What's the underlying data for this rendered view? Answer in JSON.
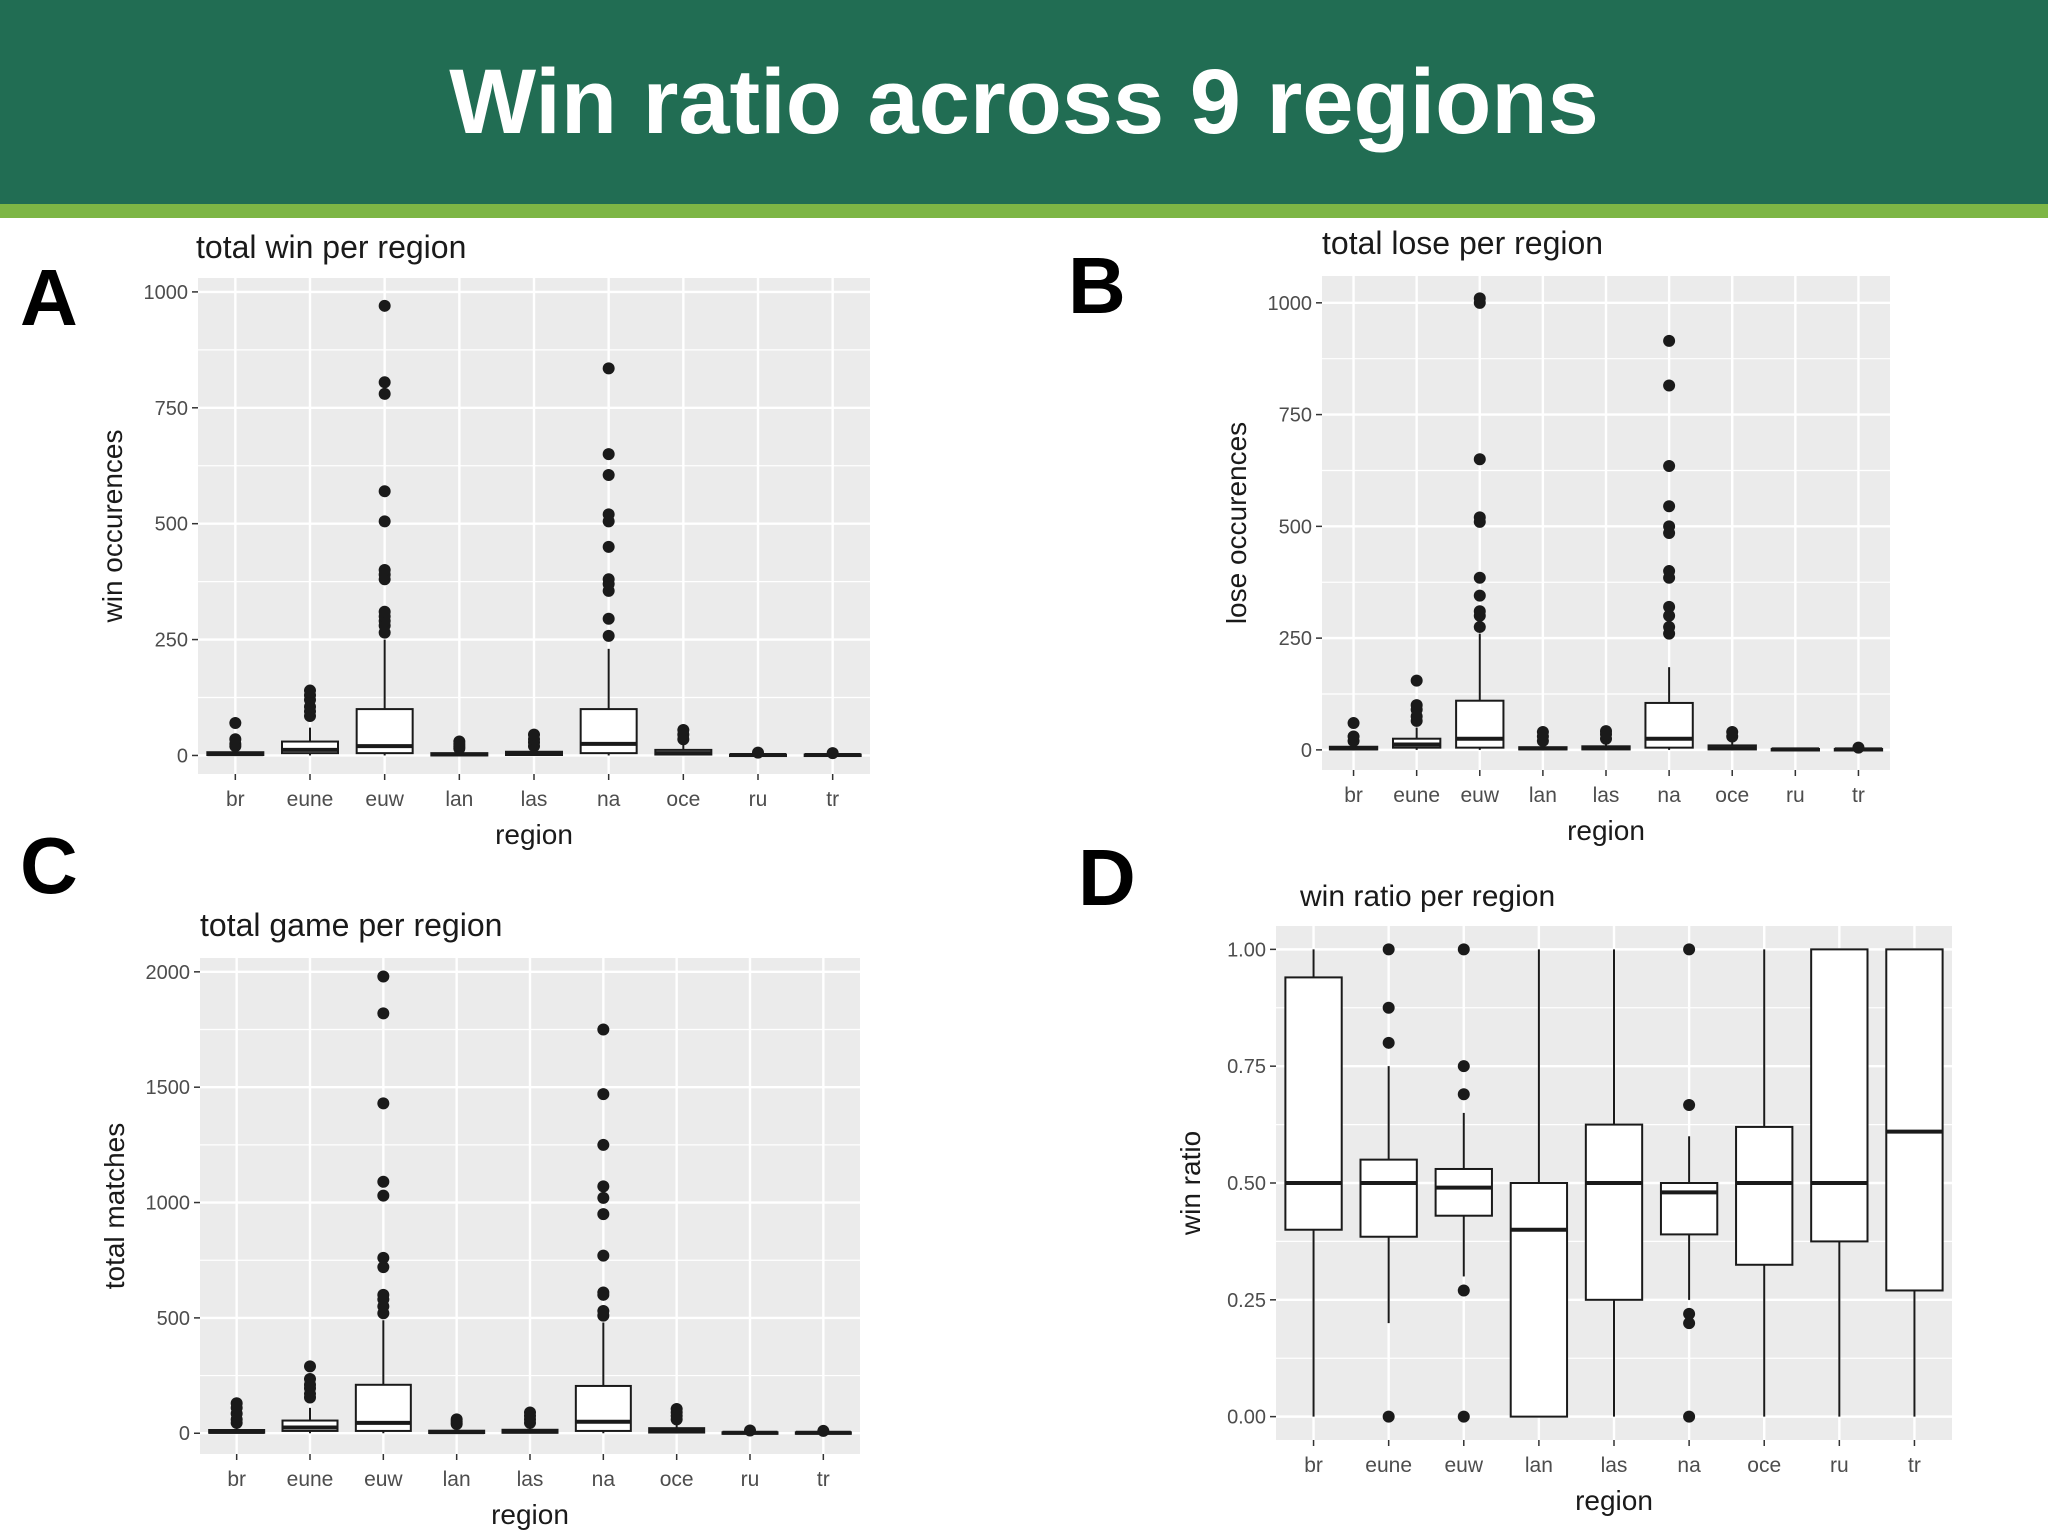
{
  "slide": {
    "title": "Win ratio across 9 regions",
    "colors": {
      "header": "#216d53",
      "stripe": "#7db645",
      "panel_bg": "#ebebeb",
      "grid": "#ffffff",
      "point": "#1a1a1a"
    }
  },
  "panels": [
    {
      "letter": "A"
    },
    {
      "letter": "B"
    },
    {
      "letter": "C"
    },
    {
      "letter": "D"
    }
  ],
  "chart_data": [
    {
      "type": "boxplot",
      "title": "total win per region",
      "xlabel": "region",
      "ylabel": "win occurences",
      "categories": [
        "br",
        "eune",
        "euw",
        "lan",
        "las",
        "na",
        "oce",
        "ru",
        "tr"
      ],
      "ylim": [
        -40,
        1030
      ],
      "yticks": [
        0,
        250,
        500,
        750,
        1000
      ],
      "ytick_labels": [
        "0",
        "250",
        "500",
        "750",
        "1000"
      ],
      "grid": true,
      "boxes": [
        {
          "category": "br",
          "min": 0,
          "q1": 1,
          "median": 3,
          "q3": 7,
          "max": 15,
          "outliers": [
            20,
            25,
            35,
            70
          ]
        },
        {
          "category": "eune",
          "min": 0,
          "q1": 5,
          "median": 12,
          "q3": 30,
          "max": 60,
          "outliers": [
            85,
            95,
            105,
            120,
            130,
            140
          ]
        },
        {
          "category": "euw",
          "min": 0,
          "q1": 5,
          "median": 20,
          "q3": 100,
          "max": 250,
          "outliers": [
            265,
            280,
            290,
            300,
            310,
            380,
            390,
            400,
            505,
            570,
            780,
            805,
            970
          ]
        },
        {
          "category": "lan",
          "min": 0,
          "q1": 0,
          "median": 2,
          "q3": 5,
          "max": 10,
          "outliers": [
            15,
            20,
            25,
            30
          ]
        },
        {
          "category": "las",
          "min": 0,
          "q1": 1,
          "median": 4,
          "q3": 8,
          "max": 15,
          "outliers": [
            20,
            28,
            35,
            45
          ]
        },
        {
          "category": "na",
          "min": 0,
          "q1": 5,
          "median": 25,
          "q3": 100,
          "max": 230,
          "outliers": [
            258,
            295,
            355,
            370,
            380,
            450,
            505,
            520,
            605,
            650,
            835
          ]
        },
        {
          "category": "oce",
          "min": 0,
          "q1": 2,
          "median": 5,
          "q3": 12,
          "max": 25,
          "outliers": [
            35,
            45,
            55
          ]
        },
        {
          "category": "ru",
          "min": 0,
          "q1": 0,
          "median": 1,
          "q3": 2,
          "max": 4,
          "outliers": [
            6
          ]
        },
        {
          "category": "tr",
          "min": 0,
          "q1": 0,
          "median": 1,
          "q3": 2,
          "max": 4,
          "outliers": [
            5
          ]
        }
      ]
    },
    {
      "type": "boxplot",
      "title": "total lose per region",
      "xlabel": "region",
      "ylabel": "lose occurences",
      "categories": [
        "br",
        "eune",
        "euw",
        "lan",
        "las",
        "na",
        "oce",
        "ru",
        "tr"
      ],
      "ylim": [
        -45,
        1060
      ],
      "yticks": [
        0,
        250,
        500,
        750,
        1000
      ],
      "ytick_labels": [
        "0",
        "250",
        "500",
        "750",
        "1000"
      ],
      "grid": true,
      "boxes": [
        {
          "category": "br",
          "min": 0,
          "q1": 1,
          "median": 3,
          "q3": 7,
          "max": 15,
          "outliers": [
            20,
            30,
            60
          ]
        },
        {
          "category": "eune",
          "min": 0,
          "q1": 5,
          "median": 12,
          "q3": 25,
          "max": 50,
          "outliers": [
            65,
            75,
            90,
            100,
            155
          ]
        },
        {
          "category": "euw",
          "min": 0,
          "q1": 5,
          "median": 25,
          "q3": 110,
          "max": 260,
          "outliers": [
            275,
            300,
            310,
            345,
            385,
            510,
            520,
            650,
            1000,
            1010
          ]
        },
        {
          "category": "lan",
          "min": 0,
          "q1": 1,
          "median": 3,
          "q3": 6,
          "max": 12,
          "outliers": [
            20,
            30,
            40
          ]
        },
        {
          "category": "las",
          "min": 0,
          "q1": 1,
          "median": 4,
          "q3": 8,
          "max": 15,
          "outliers": [
            25,
            35,
            42
          ]
        },
        {
          "category": "na",
          "min": 0,
          "q1": 5,
          "median": 25,
          "q3": 105,
          "max": 185,
          "outliers": [
            260,
            275,
            300,
            320,
            385,
            400,
            485,
            500,
            545,
            635,
            815,
            915
          ]
        },
        {
          "category": "oce",
          "min": 0,
          "q1": 1,
          "median": 4,
          "q3": 10,
          "max": 20,
          "outliers": [
            30,
            40
          ]
        },
        {
          "category": "ru",
          "min": 0,
          "q1": 0,
          "median": 1,
          "q3": 2,
          "max": 3,
          "outliers": []
        },
        {
          "category": "tr",
          "min": 0,
          "q1": 0,
          "median": 1,
          "q3": 2,
          "max": 3,
          "outliers": [
            5
          ]
        }
      ]
    },
    {
      "type": "boxplot",
      "title": "total game per region",
      "xlabel": "region",
      "ylabel": "total matches",
      "categories": [
        "br",
        "eune",
        "euw",
        "lan",
        "las",
        "na",
        "oce",
        "ru",
        "tr"
      ],
      "ylim": [
        -90,
        2060
      ],
      "yticks": [
        0,
        500,
        1000,
        1500,
        2000
      ],
      "ytick_labels": [
        "0",
        "500",
        "1000",
        "1500",
        "2000"
      ],
      "grid": true,
      "boxes": [
        {
          "category": "br",
          "min": 0,
          "q1": 2,
          "median": 6,
          "q3": 14,
          "max": 30,
          "outliers": [
            45,
            60,
            85,
            110,
            130
          ]
        },
        {
          "category": "eune",
          "min": 0,
          "q1": 10,
          "median": 25,
          "q3": 55,
          "max": 110,
          "outliers": [
            155,
            170,
            195,
            210,
            235,
            290
          ]
        },
        {
          "category": "euw",
          "min": 0,
          "q1": 10,
          "median": 45,
          "q3": 210,
          "max": 490,
          "outliers": [
            520,
            550,
            580,
            600,
            720,
            760,
            1030,
            1090,
            1430,
            1820,
            1980
          ]
        },
        {
          "category": "lan",
          "min": 0,
          "q1": 1,
          "median": 5,
          "q3": 11,
          "max": 25,
          "outliers": [
            40,
            50,
            60
          ]
        },
        {
          "category": "las",
          "min": 0,
          "q1": 2,
          "median": 7,
          "q3": 15,
          "max": 30,
          "outliers": [
            45,
            60,
            75,
            90
          ]
        },
        {
          "category": "na",
          "min": 0,
          "q1": 10,
          "median": 50,
          "q3": 205,
          "max": 480,
          "outliers": [
            510,
            530,
            600,
            610,
            770,
            950,
            1020,
            1070,
            1250,
            1470,
            1750
          ]
        },
        {
          "category": "oce",
          "min": 0,
          "q1": 3,
          "median": 10,
          "q3": 22,
          "max": 45,
          "outliers": [
            60,
            75,
            90,
            105
          ]
        },
        {
          "category": "ru",
          "min": 0,
          "q1": 0,
          "median": 2,
          "q3": 4,
          "max": 8,
          "outliers": [
            12
          ]
        },
        {
          "category": "tr",
          "min": 0,
          "q1": 0,
          "median": 2,
          "q3": 4,
          "max": 8,
          "outliers": [
            10
          ]
        }
      ]
    },
    {
      "type": "boxplot",
      "title": "win ratio per region",
      "xlabel": "region",
      "ylabel": "win ratio",
      "categories": [
        "br",
        "eune",
        "euw",
        "lan",
        "las",
        "na",
        "oce",
        "ru",
        "tr"
      ],
      "ylim": [
        -0.05,
        1.05
      ],
      "yticks": [
        0,
        0.25,
        0.5,
        0.75,
        1
      ],
      "ytick_labels": [
        "0.00",
        "0.25",
        "0.50",
        "0.75",
        "1.00"
      ],
      "grid": true,
      "boxes": [
        {
          "category": "br",
          "min": 0,
          "q1": 0.4,
          "median": 0.5,
          "q3": 0.94,
          "max": 1,
          "outliers": []
        },
        {
          "category": "eune",
          "min": 0.2,
          "q1": 0.385,
          "median": 0.5,
          "q3": 0.55,
          "max": 0.75,
          "outliers": [
            0,
            0.8,
            0.875,
            1
          ]
        },
        {
          "category": "euw",
          "min": 0.3,
          "q1": 0.43,
          "median": 0.49,
          "q3": 0.53,
          "max": 0.65,
          "outliers": [
            0,
            0.27,
            0.69,
            0.75,
            1
          ]
        },
        {
          "category": "lan",
          "min": 0,
          "q1": 0,
          "median": 0.4,
          "q3": 0.5,
          "max": 1,
          "outliers": []
        },
        {
          "category": "las",
          "min": 0,
          "q1": 0.25,
          "median": 0.5,
          "q3": 0.625,
          "max": 1,
          "outliers": []
        },
        {
          "category": "na",
          "min": 0.25,
          "q1": 0.39,
          "median": 0.48,
          "q3": 0.5,
          "max": 0.6,
          "outliers": [
            0,
            0.2,
            0.22,
            0.667,
            1
          ]
        },
        {
          "category": "oce",
          "min": 0,
          "q1": 0.325,
          "median": 0.5,
          "q3": 0.62,
          "max": 1,
          "outliers": []
        },
        {
          "category": "ru",
          "min": 0,
          "q1": 0.375,
          "median": 0.5,
          "q3": 1,
          "max": 1,
          "outliers": []
        },
        {
          "category": "tr",
          "min": 0,
          "q1": 0.27,
          "median": 0.61,
          "q3": 1,
          "max": 1,
          "outliers": []
        }
      ]
    }
  ]
}
